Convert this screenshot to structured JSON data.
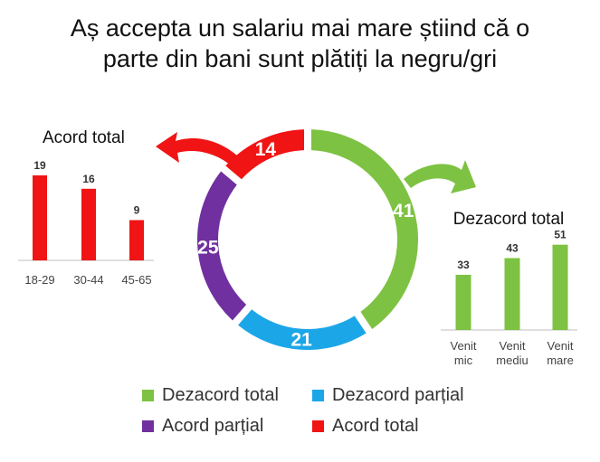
{
  "title_line1": "Aș accepta un salariu mai mare știind că o",
  "title_line2": "parte din bani sunt plătiți la negru/gri",
  "colors": {
    "green": "#7DC242",
    "blue": "#1BA6E8",
    "purple": "#7030A0",
    "red": "#F01414",
    "axis": "#bfbfbf"
  },
  "legend": [
    {
      "label": "Dezacord total",
      "color": "#7DC242"
    },
    {
      "label": "Dezacord parțial",
      "color": "#1BA6E8"
    },
    {
      "label": "Acord parțial",
      "color": "#7030A0"
    },
    {
      "label": "Acord total",
      "color": "#F01414"
    }
  ],
  "chart_data": [
    {
      "type": "pie",
      "categories": [
        "Dezacord total",
        "Dezacord parțial",
        "Acord parțial",
        "Acord total"
      ],
      "values": [
        41,
        21,
        25,
        14
      ]
    },
    {
      "type": "bar",
      "title": "Acord total",
      "categories": [
        "18-29",
        "30-44",
        "45-65"
      ],
      "values": [
        19,
        16,
        9
      ]
    },
    {
      "type": "bar",
      "title": "Dezacord total",
      "categories": [
        "Venit mic",
        "Venit mediu",
        "Venit mare"
      ],
      "category_lines": [
        [
          "Venit",
          "mic"
        ],
        [
          "Venit",
          "mediu"
        ],
        [
          "Venit",
          "mare"
        ]
      ],
      "values": [
        33,
        43,
        51
      ]
    }
  ]
}
